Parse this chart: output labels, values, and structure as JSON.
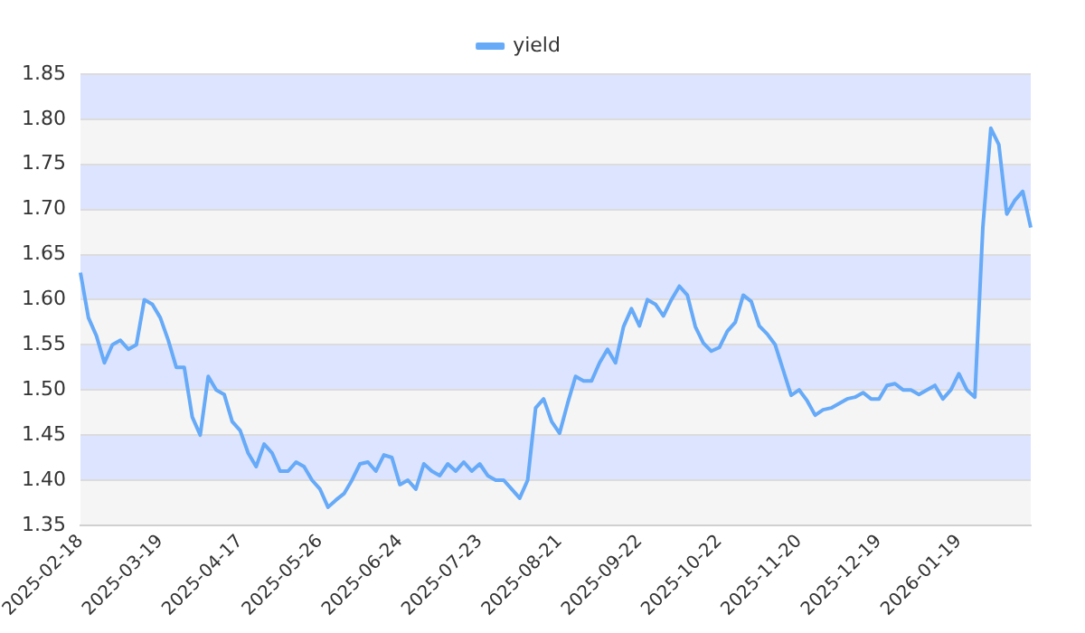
{
  "chart_data": {
    "type": "line",
    "categories": [
      "2025-02-18",
      null,
      null,
      null,
      null,
      null,
      null,
      null,
      null,
      null,
      "2025-03-19",
      null,
      null,
      null,
      null,
      null,
      null,
      null,
      null,
      null,
      "2025-04-17",
      null,
      null,
      null,
      null,
      null,
      null,
      null,
      null,
      null,
      "2025-05-26",
      null,
      null,
      null,
      null,
      null,
      null,
      null,
      null,
      null,
      "2025-06-24",
      null,
      null,
      null,
      null,
      null,
      null,
      null,
      null,
      null,
      "2025-07-23",
      null,
      null,
      null,
      null,
      null,
      null,
      null,
      null,
      null,
      "2025-08-21",
      null,
      null,
      null,
      null,
      null,
      null,
      null,
      null,
      null,
      "2025-09-22",
      null,
      null,
      null,
      null,
      null,
      null,
      null,
      null,
      null,
      "2025-10-22",
      null,
      null,
      null,
      null,
      null,
      null,
      null,
      null,
      null,
      "2025-11-20",
      null,
      null,
      null,
      null,
      null,
      null,
      null,
      null,
      null,
      "2025-12-19",
      null,
      null,
      null,
      null,
      null,
      null,
      null,
      null,
      null,
      "2026-01-19",
      null,
      null,
      null,
      null,
      null,
      null,
      null,
      null,
      null
    ],
    "series": [
      {
        "name": "yield",
        "color": "#66aaf8",
        "values": [
          1.63,
          1.58,
          1.56,
          1.53,
          1.55,
          1.555,
          1.545,
          1.55,
          1.6,
          1.595,
          1.58,
          1.555,
          1.525,
          1.525,
          1.47,
          1.45,
          1.515,
          1.5,
          1.495,
          1.465,
          1.455,
          1.43,
          1.415,
          1.44,
          1.43,
          1.41,
          1.41,
          1.42,
          1.415,
          1.4,
          1.39,
          1.37,
          1.378,
          1.385,
          1.4,
          1.418,
          1.42,
          1.41,
          1.428,
          1.425,
          1.395,
          1.4,
          1.39,
          1.418,
          1.41,
          1.405,
          1.418,
          1.41,
          1.42,
          1.41,
          1.418,
          1.405,
          1.4,
          1.4,
          1.39,
          1.38,
          1.4,
          1.48,
          1.49,
          1.465,
          1.452,
          1.485,
          1.515,
          1.51,
          1.51,
          1.53,
          1.545,
          1.53,
          1.57,
          1.59,
          1.571,
          1.6,
          1.595,
          1.582,
          1.6,
          1.615,
          1.605,
          1.57,
          1.552,
          1.543,
          1.547,
          1.565,
          1.575,
          1.605,
          1.598,
          1.571,
          1.562,
          1.55,
          1.522,
          1.494,
          1.5,
          1.488,
          1.472,
          1.478,
          1.48,
          1.485,
          1.49,
          1.492,
          1.497,
          1.49,
          1.49,
          1.505,
          1.507,
          1.5,
          1.5,
          1.495,
          1.5,
          1.505,
          1.49,
          1.5,
          1.518,
          1.5,
          1.492,
          1.68,
          1.79,
          1.772,
          1.695,
          1.71,
          1.72,
          1.68
        ]
      }
    ],
    "ylim": [
      1.35,
      1.85
    ],
    "yticks": [
      {
        "value": 1.35,
        "label": "1.35"
      },
      {
        "value": 1.4,
        "label": "1.40"
      },
      {
        "value": 1.45,
        "label": "1.45"
      },
      {
        "value": 1.5,
        "label": "1.50"
      },
      {
        "value": 1.55,
        "label": "1.55"
      },
      {
        "value": 1.6,
        "label": "1.60"
      },
      {
        "value": 1.65,
        "label": "1.65"
      },
      {
        "value": 1.7,
        "label": "1.70"
      },
      {
        "value": 1.75,
        "label": "1.75"
      },
      {
        "value": 1.8,
        "label": "1.80"
      },
      {
        "value": 1.85,
        "label": "1.85"
      }
    ],
    "grid": "y",
    "legend": "top",
    "marker": "none",
    "line_style": "solid"
  }
}
